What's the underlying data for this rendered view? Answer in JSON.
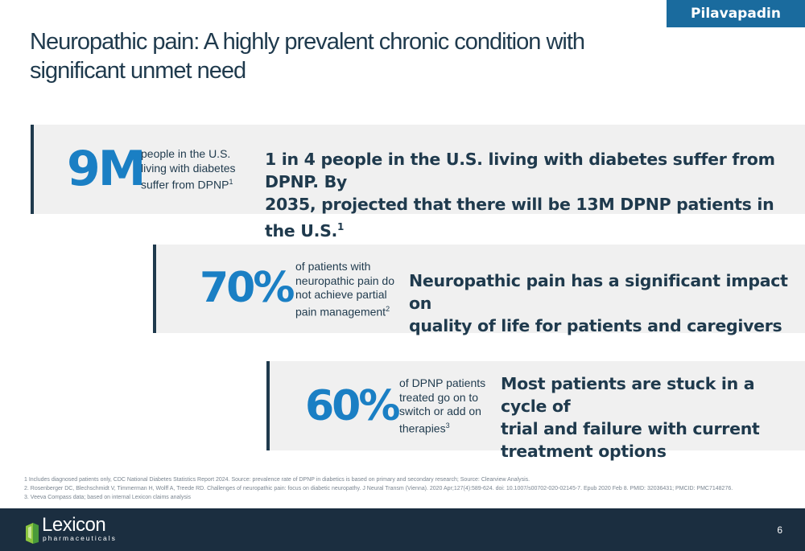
{
  "tag": "Pilavapadin",
  "title": "Neuropathic pain: A highly prevalent chronic condition with significant unmet need",
  "stats": [
    {
      "value": "9M",
      "desc_lines": [
        "people in the U.S.",
        "living with diabetes",
        "suffer from DPNP"
      ],
      "desc_ref": "1",
      "message_lines": [
        "1 in 4 people in the U.S. living with diabetes suffer from DPNP. By",
        "2035, projected that there will be 13M DPNP patients in the U.S."
      ],
      "message_ref": "1"
    },
    {
      "value": "70%",
      "desc_lines": [
        "of patients with",
        "neuropathic pain do",
        "not achieve partial",
        "pain management"
      ],
      "desc_ref": "2",
      "message_lines": [
        "Neuropathic pain has a significant impact on",
        "quality of life for patients and caregivers"
      ]
    },
    {
      "value": "60%",
      "desc_lines": [
        "of DPNP patients",
        "treated go on to",
        "switch or add on",
        "therapies"
      ],
      "desc_ref": "3",
      "message_lines": [
        "Most patients are stuck in a cycle of",
        "trial and failure with current",
        "treatment options"
      ]
    }
  ],
  "footnotes": [
    "1 Includes diagnosed patients only, CDC National Diabetes Statistics Report 2024. Source: prevalence rate of DPNP in diabetics is based on primary and secondary research; Source: Clearview Analysis.",
    "2. Rosenberger DC, Blechschmidt V, Timmerman H, Wolff A, Treede RD. Challenges of neuropathic pain: focus on diabetic neuropathy. J Neural Transm (Vienna). 2020 Apr;127(4):589-624. doi: 10.1007/s00702-020-02145-7. Epub 2020 Feb 8. PMID: 32036431; PMCID: PMC7148276.",
    "3. Veeva Compass data; based on internal Lexicon claims analysis"
  ],
  "footer": {
    "logo_word": "Lexicon",
    "logo_sub": "pharmaceuticals",
    "page_number": "6"
  },
  "colors": {
    "accent": "#1a7fc4",
    "navy": "#1f3a4d",
    "tag_bg": "#1a6b9e",
    "footer_bg": "#1b2e40",
    "band_bg": "#f0f0f0"
  }
}
